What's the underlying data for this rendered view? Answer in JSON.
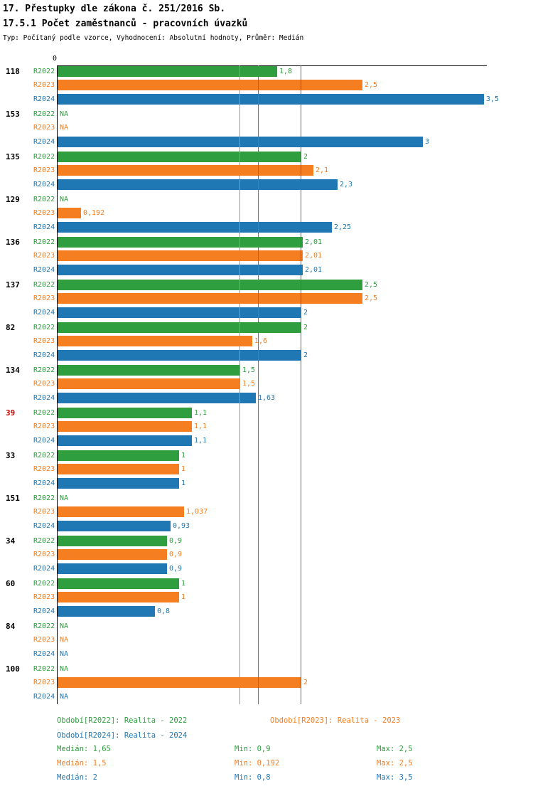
{
  "header": {
    "title": "17. Přestupky dle zákona č. 251/2016 Sb.",
    "subtitle": "17.5.1 Počet zaměstnanců - pracovních úvazků",
    "meta": "Typ: Počítaný podle vzorce, Vyhodnocení: Absolutní hodnoty, Průměr: Medián"
  },
  "colors": {
    "r2022": "#2e9e3e",
    "r2023": "#f57e20",
    "r2024": "#1f77b4",
    "highlight": "#cc0000",
    "axis": "#000000"
  },
  "chart_data": {
    "type": "bar",
    "orientation": "horizontal",
    "x_axis": {
      "min": 0,
      "max": 3.5,
      "zero_label": "0"
    },
    "grid": "median-lines-only",
    "legend_position": "bottom",
    "series": [
      {
        "id": "R2022",
        "name": "Realita - 2022",
        "color_key": "r2022",
        "median": 1.65,
        "min": 0.9,
        "max": 2.5
      },
      {
        "id": "R2023",
        "name": "Realita - 2023",
        "color_key": "r2023",
        "median": 1.5,
        "min": 0.192,
        "max": 2.5
      },
      {
        "id": "R2024",
        "name": "Realita - 2024",
        "color_key": "r2024",
        "median": 2,
        "min": 0.8,
        "max": 3.5
      }
    ],
    "median_lines": [
      {
        "series": "R2023",
        "value": 1.5,
        "color_key": "r2023"
      },
      {
        "series": "R2022",
        "value": 1.65,
        "color_key": "r2022"
      },
      {
        "series": "R2024",
        "value": 2,
        "color_key": "r2024"
      }
    ],
    "groups": [
      {
        "label": "118",
        "highlight": false,
        "values": [
          1.8,
          2.5,
          3.5
        ],
        "value_labels": [
          "1,8",
          "2,5",
          "3,5"
        ]
      },
      {
        "label": "153",
        "highlight": false,
        "values": [
          null,
          null,
          3
        ],
        "value_labels": [
          "NA",
          "NA",
          "3"
        ]
      },
      {
        "label": "135",
        "highlight": false,
        "values": [
          2,
          2.1,
          2.3
        ],
        "value_labels": [
          "2",
          "2,1",
          "2,3"
        ]
      },
      {
        "label": "129",
        "highlight": false,
        "values": [
          null,
          0.192,
          2.25
        ],
        "value_labels": [
          "NA",
          "0,192",
          "2,25"
        ]
      },
      {
        "label": "136",
        "highlight": false,
        "values": [
          2.01,
          2.01,
          2.01
        ],
        "value_labels": [
          "2,01",
          "2,01",
          "2,01"
        ]
      },
      {
        "label": "137",
        "highlight": false,
        "values": [
          2.5,
          2.5,
          2
        ],
        "value_labels": [
          "2,5",
          "2,5",
          "2"
        ]
      },
      {
        "label": "82",
        "highlight": false,
        "values": [
          2,
          1.6,
          2
        ],
        "value_labels": [
          "2",
          "1,6",
          "2"
        ]
      },
      {
        "label": "134",
        "highlight": false,
        "values": [
          1.5,
          1.5,
          1.63
        ],
        "value_labels": [
          "1,5",
          "1,5",
          "1,63"
        ]
      },
      {
        "label": "39",
        "highlight": true,
        "values": [
          1.1,
          1.1,
          1.1
        ],
        "value_labels": [
          "1,1",
          "1,1",
          "1,1"
        ]
      },
      {
        "label": "33",
        "highlight": false,
        "values": [
          1,
          1,
          1
        ],
        "value_labels": [
          "1",
          "1",
          "1"
        ]
      },
      {
        "label": "151",
        "highlight": false,
        "values": [
          null,
          1.037,
          0.93
        ],
        "value_labels": [
          "NA",
          "1,037",
          "0,93"
        ]
      },
      {
        "label": "34",
        "highlight": false,
        "values": [
          0.9,
          0.9,
          0.9
        ],
        "value_labels": [
          "0,9",
          "0,9",
          "0,9"
        ]
      },
      {
        "label": "60",
        "highlight": false,
        "values": [
          1,
          1,
          0.8
        ],
        "value_labels": [
          "1",
          "1",
          "0,8"
        ]
      },
      {
        "label": "84",
        "highlight": false,
        "values": [
          null,
          null,
          null
        ],
        "value_labels": [
          "NA",
          "NA",
          "NA"
        ]
      },
      {
        "label": "100",
        "highlight": false,
        "values": [
          null,
          2,
          null
        ],
        "value_labels": [
          "NA",
          "2",
          "NA"
        ]
      }
    ]
  },
  "legend": {
    "items": [
      {
        "label": "Období[R2022]: Realita - 2022",
        "color_key": "r2022"
      },
      {
        "label": "Období[R2023]: Realita - 2023",
        "color_key": "r2023"
      },
      {
        "label": "Období[R2024]: Realita - 2024",
        "color_key": "r2024"
      }
    ]
  },
  "stats": {
    "rows": [
      {
        "color_key": "r2022",
        "median": "Medián: 1,65",
        "min": "Min: 0,9",
        "max": "Max: 2,5"
      },
      {
        "color_key": "r2023",
        "median": "Medián: 1,5",
        "min": "Min: 0,192",
        "max": "Max: 2,5"
      },
      {
        "color_key": "r2024",
        "median": "Medián: 2",
        "min": "Min: 0,8",
        "max": "Max: 3,5"
      }
    ]
  }
}
